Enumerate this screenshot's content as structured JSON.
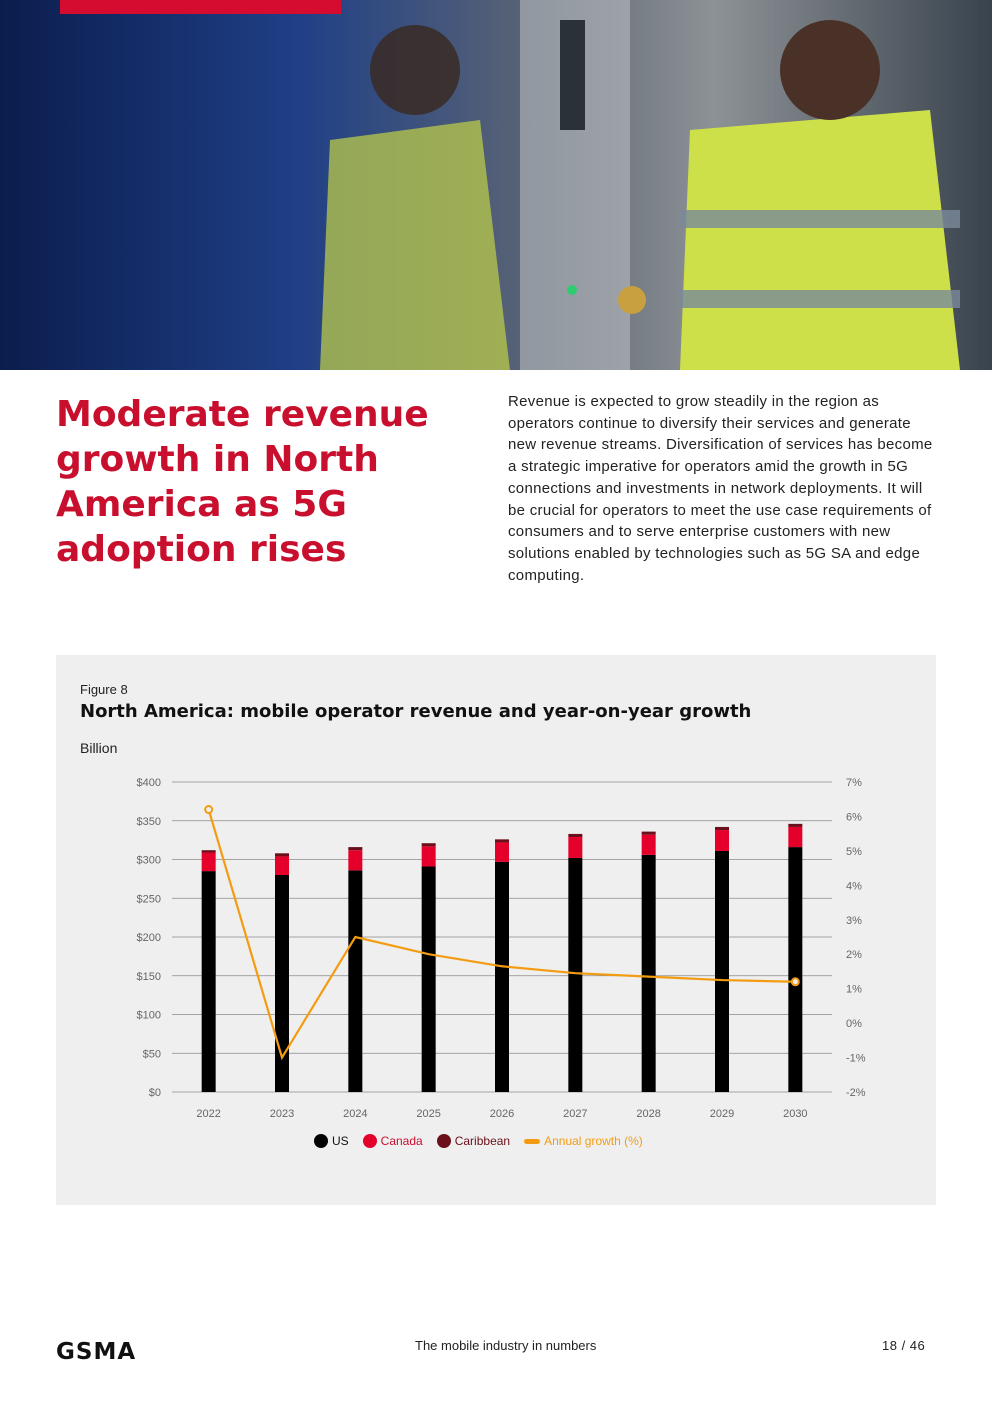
{
  "page": {
    "headline": "Moderate revenue growth in North America as 5G adoption rises",
    "intro": "Revenue is expected to grow steadily in the region as operators continue to diversify their services and generate new revenue streams. Diversification of services has become a strategic imperative for operators amid the growth in 5G connections and investments in network deployments. It will be crucial for operators to meet the use case requirements of consumers and to serve enterprise customers with new solutions enabled by technologies such as 5G SA and edge computing."
  },
  "figure": {
    "label": "Figure 8",
    "title": "North America: mobile operator revenue and year-on-year growth",
    "unit": "Billion"
  },
  "chart_data": {
    "type": "bar",
    "stacked": true,
    "categories": [
      "2022",
      "2023",
      "2024",
      "2025",
      "2026",
      "2027",
      "2028",
      "2029",
      "2030"
    ],
    "series": [
      {
        "name": "US",
        "color": "#000000",
        "values": [
          285,
          280,
          286,
          291,
          297,
          302,
          306,
          311,
          316
        ]
      },
      {
        "name": "Canada",
        "color": "#e4002b",
        "values": [
          24,
          24,
          26,
          26,
          25,
          27,
          26,
          27,
          26
        ]
      },
      {
        "name": "Caribbean",
        "color": "#6b0f1a",
        "values": [
          3,
          4,
          4,
          4,
          4,
          4,
          4,
          4,
          4
        ]
      }
    ],
    "line_series": {
      "name": "Annual growth (%)",
      "color": "#f39c12",
      "axis": "right",
      "values": [
        6.2,
        -1.0,
        2.5,
        2.0,
        1.65,
        1.45,
        1.35,
        1.25,
        1.2
      ]
    },
    "y_left": {
      "min": 0,
      "max": 400,
      "ticks": [
        "$0",
        "$50",
        "$100",
        "$150",
        "$200",
        "$250",
        "$300",
        "$350",
        "$400"
      ]
    },
    "y_right": {
      "min": -2,
      "max": 7,
      "ticks": [
        "-2%",
        "-1%",
        "0%",
        "1%",
        "2%",
        "3%",
        "4%",
        "5%",
        "6%",
        "7%"
      ]
    },
    "grid": true,
    "legend_position": "bottom"
  },
  "footer": {
    "logo_text": "GSMA",
    "center": "The mobile industry in numbers",
    "page": "18 / 46"
  }
}
